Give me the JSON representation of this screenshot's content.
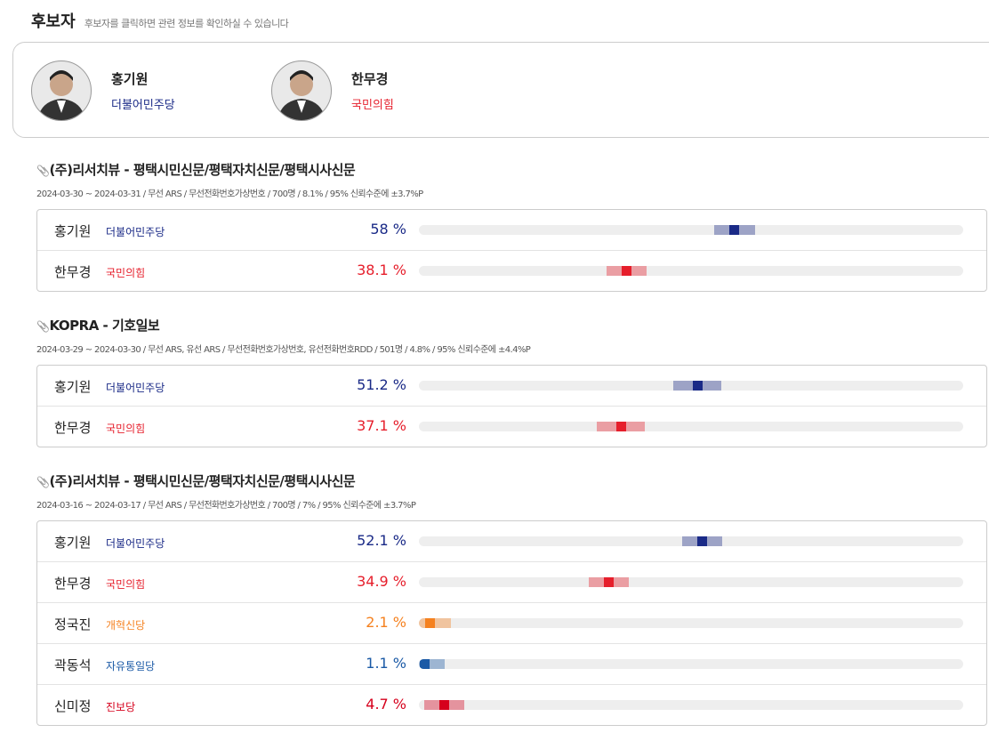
{
  "header": {
    "title": "후보자",
    "subtitle": "후보자를 클릭하면 관련 정보를 확인하실 수 있습니다"
  },
  "candidates": [
    {
      "name": "홍기원",
      "party": "더불어민주당",
      "color": "#1a2a87"
    },
    {
      "name": "한무경",
      "party": "국민의힘",
      "color": "#e61e2b"
    }
  ],
  "xlim": [
    0,
    100
  ],
  "polls": [
    {
      "title": "(주)리서치뷰 - 평택시민신문/평택자치신문/평택시사신문",
      "meta": "2024-03-30 ~ 2024-03-31 / 무선 ARS / 무선전화번호가상번호 / 700명 / 8.1% / 95% 신뢰수준에 ±3.7%P",
      "margin": 3.7,
      "rows": [
        {
          "name": "홍기원",
          "party": "더불어민주당",
          "value": 58,
          "value_label": "58 %",
          "color": "#1a2a87"
        },
        {
          "name": "한무경",
          "party": "국민의힘",
          "value": 38.1,
          "value_label": "38.1 %",
          "color": "#e61e2b"
        }
      ]
    },
    {
      "title": "KOPRA - 기호일보",
      "meta": "2024-03-29 ~ 2024-03-30 / 무선 ARS, 유선 ARS / 무선전화번호가상번호, 유선전화번호RDD / 501명 / 4.8% / 95% 신뢰수준에 ±4.4%P",
      "margin": 4.4,
      "rows": [
        {
          "name": "홍기원",
          "party": "더불어민주당",
          "value": 51.2,
          "value_label": "51.2 %",
          "color": "#1a2a87"
        },
        {
          "name": "한무경",
          "party": "국민의힘",
          "value": 37.1,
          "value_label": "37.1 %",
          "color": "#e61e2b"
        }
      ]
    },
    {
      "title": "(주)리서치뷰 - 평택시민신문/평택자치신문/평택시사신문",
      "meta": "2024-03-16 ~ 2024-03-17 / 무선 ARS / 무선전화번호가상번호 / 700명 / 7% / 95% 신뢰수준에 ±3.7%P",
      "margin": 3.7,
      "rows": [
        {
          "name": "홍기원",
          "party": "더불어민주당",
          "value": 52.1,
          "value_label": "52.1 %",
          "color": "#1a2a87"
        },
        {
          "name": "한무경",
          "party": "국민의힘",
          "value": 34.9,
          "value_label": "34.9 %",
          "color": "#e61e2b"
        },
        {
          "name": "정국진",
          "party": "개혁신당",
          "value": 2.1,
          "value_label": "2.1 %",
          "color": "#f5811f"
        },
        {
          "name": "곽동석",
          "party": "자유통일당",
          "value": 1.1,
          "value_label": "1.1 %",
          "color": "#1b5aa6"
        },
        {
          "name": "신미정",
          "party": "진보당",
          "value": 4.7,
          "value_label": "4.7 %",
          "color": "#d6001c"
        }
      ]
    }
  ]
}
